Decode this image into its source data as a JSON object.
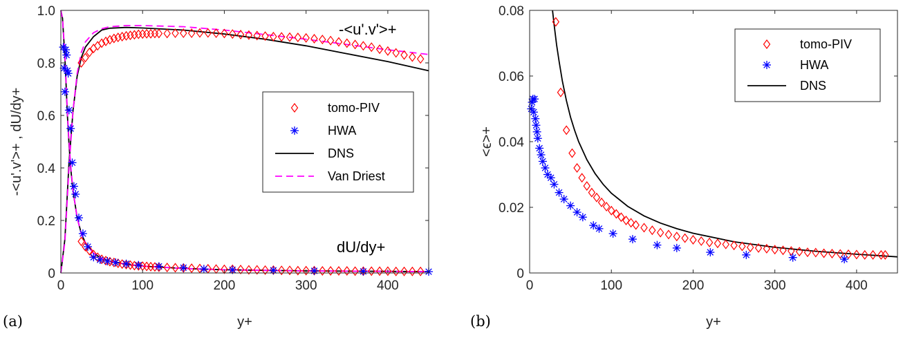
{
  "chart_data": [
    {
      "type": "line",
      "panel_label": "(a)",
      "xlabel": "y+",
      "ylabel": "-<u'.v'>+ , dU/dy+",
      "xlim": [
        0,
        450
      ],
      "ylim": [
        0,
        1
      ],
      "xticks": [
        0,
        100,
        200,
        300,
        400
      ],
      "yticks": [
        0,
        0.2,
        0.4,
        0.6,
        0.8,
        1
      ],
      "ytick_labels": [
        "0",
        "0.2",
        "0.4",
        "0.6",
        "0.8",
        "1.0"
      ],
      "grid": false,
      "legend_position": "center-right",
      "annotations": [
        "-<u'.v'>+",
        "dU/dy+"
      ],
      "series": [
        {
          "name": "tomo-PIV",
          "marker": "diamond",
          "color": "#ff0000",
          "curves": [
            {
              "x": [
                25,
                30,
                35,
                40,
                45,
                50,
                55,
                60,
                65,
                70,
                75,
                80,
                85,
                90,
                95,
                100,
                105,
                110,
                115,
                120,
                130,
                140,
                150,
                160,
                170,
                180,
                190,
                200,
                210,
                220,
                230,
                240,
                250,
                260,
                270,
                280,
                290,
                300,
                310,
                320,
                330,
                340,
                350,
                360,
                370,
                380,
                390,
                400,
                410,
                420,
                430,
                440
              ],
              "y": [
                0.8,
                0.82,
                0.84,
                0.855,
                0.865,
                0.875,
                0.882,
                0.888,
                0.893,
                0.897,
                0.9,
                0.903,
                0.905,
                0.907,
                0.909,
                0.91,
                0.911,
                0.911,
                0.912,
                0.912,
                0.912,
                0.913,
                0.913,
                0.913,
                0.914,
                0.914,
                0.913,
                0.912,
                0.91,
                0.908,
                0.906,
                0.904,
                0.902,
                0.9,
                0.899,
                0.898,
                0.897,
                0.895,
                0.892,
                0.889,
                0.885,
                0.88,
                0.875,
                0.87,
                0.865,
                0.86,
                0.852,
                0.845,
                0.838,
                0.83,
                0.822,
                0.815
              ]
            },
            {
              "x": [
                25,
                30,
                35,
                40,
                45,
                50,
                55,
                60,
                65,
                70,
                75,
                80,
                85,
                90,
                95,
                100,
                105,
                110,
                115,
                120,
                130,
                140,
                150,
                160,
                170,
                180,
                190,
                200,
                210,
                220,
                230,
                240,
                250,
                260,
                270,
                280,
                290,
                300,
                310,
                320,
                330,
                340,
                350,
                360,
                370,
                380,
                390,
                400,
                410,
                420,
                430,
                440
              ],
              "y": [
                0.12,
                0.1,
                0.085,
                0.07,
                0.06,
                0.052,
                0.047,
                0.043,
                0.04,
                0.037,
                0.034,
                0.032,
                0.03,
                0.028,
                0.027,
                0.026,
                0.025,
                0.024,
                0.023,
                0.022,
                0.021,
                0.02,
                0.019,
                0.018,
                0.017,
                0.016,
                0.015,
                0.014,
                0.014,
                0.013,
                0.012,
                0.012,
                0.011,
                0.011,
                0.01,
                0.01,
                0.009,
                0.009,
                0.009,
                0.008,
                0.008,
                0.008,
                0.008,
                0.007,
                0.007,
                0.007,
                0.007,
                0.007,
                0.006,
                0.006,
                0.006,
                0.006
              ]
            }
          ]
        },
        {
          "name": "HWA",
          "marker": "asterisk",
          "color": "#0000ff",
          "curves": [
            {
              "x": [
                3,
                4,
                5,
                6,
                7,
                8,
                9,
                10,
                12,
                14,
                16,
                18,
                22,
                27,
                33,
                40,
                48,
                57,
                67,
                80,
                95,
                120,
                150,
                175,
                210,
                260,
                310,
                370,
                450
              ],
              "y": [
                0.86,
                0.78,
                0.69,
                0.85,
                0.83,
                0.77,
                0.76,
                0.62,
                0.55,
                0.42,
                0.33,
                0.3,
                0.21,
                0.15,
                0.1,
                0.06,
                0.05,
                0.045,
                0.04,
                0.035,
                0.03,
                0.025,
                0.02,
                0.015,
                0.012,
                0.01,
                0.008,
                0.006,
                0.005
              ]
            }
          ]
        },
        {
          "name": "DNS",
          "line": "solid",
          "color": "#000000",
          "curves": [
            {
              "x": [
                0,
                5,
                10,
                15,
                20,
                25,
                30,
                40,
                50,
                60,
                80,
                100,
                150,
                200,
                250,
                300,
                350,
                400,
                450
              ],
              "y": [
                0,
                0.13,
                0.42,
                0.62,
                0.75,
                0.82,
                0.86,
                0.9,
                0.925,
                0.932,
                0.935,
                0.933,
                0.925,
                0.91,
                0.89,
                0.865,
                0.835,
                0.805,
                0.77
              ]
            },
            {
              "x": [
                0,
                2,
                5,
                8,
                10,
                12,
                15,
                18,
                20,
                25,
                30,
                40,
                50,
                60,
                80,
                100,
                150,
                200,
                300,
                400,
                450
              ],
              "y": [
                1.0,
                0.97,
                0.82,
                0.6,
                0.49,
                0.4,
                0.31,
                0.25,
                0.21,
                0.15,
                0.115,
                0.075,
                0.055,
                0.045,
                0.033,
                0.026,
                0.017,
                0.012,
                0.008,
                0.006,
                0.005
              ]
            }
          ]
        },
        {
          "name": "Van Driest",
          "line": "dashed",
          "color": "#ff00ff",
          "curves": [
            {
              "x": [
                0,
                5,
                10,
                15,
                20,
                25,
                30,
                40,
                50,
                60,
                80,
                100,
                150,
                200,
                250,
                300,
                350,
                400,
                450
              ],
              "y": [
                0,
                0.12,
                0.4,
                0.62,
                0.76,
                0.84,
                0.88,
                0.915,
                0.93,
                0.938,
                0.942,
                0.942,
                0.938,
                0.925,
                0.908,
                0.89,
                0.87,
                0.85,
                0.832
              ]
            },
            {
              "x": [
                0,
                2,
                5,
                8,
                10,
                12,
                15,
                18,
                20,
                25,
                30,
                40,
                50,
                60,
                80,
                100,
                150,
                200,
                300,
                400,
                450
              ],
              "y": [
                1.0,
                0.97,
                0.83,
                0.61,
                0.5,
                0.41,
                0.31,
                0.25,
                0.21,
                0.15,
                0.115,
                0.075,
                0.055,
                0.045,
                0.033,
                0.026,
                0.017,
                0.012,
                0.008,
                0.006,
                0.005
              ]
            }
          ]
        }
      ],
      "legend": [
        "tomo-PIV",
        "HWA",
        "DNS",
        "Van Driest"
      ]
    },
    {
      "type": "line",
      "panel_label": "(b)",
      "xlabel": "y+",
      "ylabel": "<ϵ>+",
      "xlim": [
        0,
        450
      ],
      "ylim": [
        0,
        0.08
      ],
      "xticks": [
        0,
        100,
        200,
        300,
        400
      ],
      "yticks": [
        0,
        0.02,
        0.04,
        0.06,
        0.08
      ],
      "ytick_labels": [
        "0",
        "0.02",
        "0.04",
        "0.06",
        "0.08"
      ],
      "grid": false,
      "legend_position": "top-right",
      "series": [
        {
          "name": "tomo-PIV",
          "marker": "diamond",
          "color": "#ff0000",
          "curves": [
            {
              "x": [
                32,
                38,
                45,
                52,
                58,
                64,
                70,
                76,
                82,
                88,
                94,
                100,
                106,
                112,
                118,
                124,
                130,
                140,
                150,
                160,
                170,
                180,
                190,
                200,
                210,
                220,
                230,
                240,
                250,
                260,
                270,
                280,
                290,
                300,
                310,
                320,
                330,
                340,
                350,
                360,
                370,
                380,
                390,
                400,
                410,
                420,
                430,
                435
              ],
              "y": [
                0.0765,
                0.055,
                0.0435,
                0.0365,
                0.032,
                0.029,
                0.0265,
                0.0245,
                0.023,
                0.0215,
                0.0202,
                0.019,
                0.018,
                0.017,
                0.016,
                0.0153,
                0.0146,
                0.0138,
                0.013,
                0.0123,
                0.0117,
                0.0111,
                0.0106,
                0.0101,
                0.0097,
                0.0093,
                0.009,
                0.0087,
                0.0084,
                0.0081,
                0.0078,
                0.0076,
                0.0074,
                0.0071,
                0.0069,
                0.0067,
                0.0065,
                0.0063,
                0.0062,
                0.006,
                0.0059,
                0.0058,
                0.0057,
                0.0056,
                0.0055,
                0.0055,
                0.0055,
                0.0055
              ]
            }
          ]
        },
        {
          "name": "HWA",
          "marker": "asterisk",
          "color": "#0000ff",
          "curves": [
            {
              "x": [
                2,
                3,
                4,
                5,
                6,
                7,
                8,
                9,
                10,
                12,
                14,
                16,
                19,
                22,
                26,
                30,
                36,
                42,
                50,
                58,
                65,
                78,
                85,
                102,
                126,
                156,
                180,
                221,
                265,
                322,
                385
              ],
              "y": [
                0.05,
                0.052,
                0.053,
                0.049,
                0.053,
                0.047,
                0.045,
                0.043,
                0.041,
                0.038,
                0.036,
                0.034,
                0.032,
                0.03,
                0.029,
                0.027,
                0.0245,
                0.0225,
                0.0205,
                0.0185,
                0.017,
                0.0145,
                0.0135,
                0.012,
                0.0103,
                0.0085,
                0.0076,
                0.0063,
                0.0055,
                0.0047,
                0.0042
              ]
            }
          ]
        },
        {
          "name": "DNS",
          "line": "solid",
          "color": "#000000",
          "curves": [
            {
              "x": [
                28,
                30,
                33,
                36,
                40,
                45,
                50,
                55,
                60,
                70,
                80,
                90,
                100,
                120,
                140,
                160,
                180,
                200,
                250,
                300,
                350,
                400,
                450
              ],
              "y": [
                0.08,
                0.0755,
                0.0695,
                0.0645,
                0.0585,
                0.0525,
                0.0475,
                0.0435,
                0.04,
                0.0345,
                0.0303,
                0.027,
                0.0243,
                0.0203,
                0.0174,
                0.0152,
                0.0135,
                0.0121,
                0.0095,
                0.0078,
                0.0066,
                0.0057,
                0.0049
              ]
            }
          ]
        }
      ],
      "legend": [
        "tomo-PIV",
        "HWA",
        "DNS"
      ]
    }
  ]
}
